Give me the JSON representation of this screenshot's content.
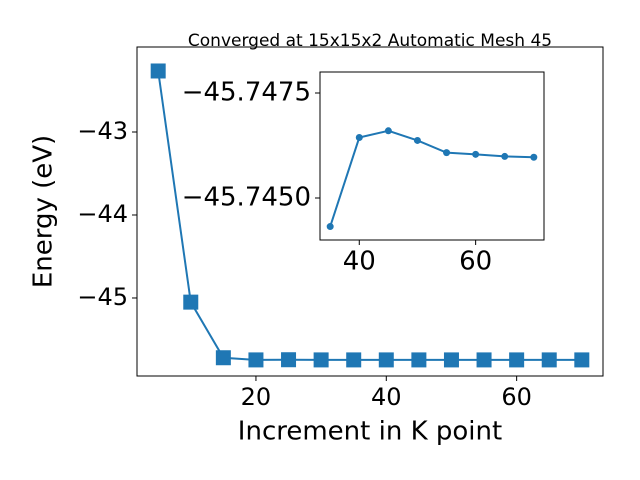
{
  "chart_data": [
    {
      "type": "line",
      "title": "Converged at 15x15x2 Automatic Mesh 45",
      "x_label": "Increment in K point",
      "y_label": "Energy (eV)",
      "x": [
        5,
        10,
        15,
        20,
        25,
        30,
        35,
        40,
        45,
        50,
        55,
        60,
        65,
        70
      ],
      "series": [
        {
          "color": "#1f77b4",
          "marker": "square",
          "values": [
            -42.265,
            -45.05,
            -45.72,
            -45.746,
            -45.744,
            -45.746,
            -45.746,
            -45.746,
            -45.746,
            -45.746,
            -45.746,
            -45.746,
            -45.746,
            -45.746
          ]
        }
      ],
      "xlim": [
        1.75,
        73.25
      ],
      "ylim": [
        -45.94,
        -41.976
      ],
      "xticks": [
        20,
        40,
        60
      ],
      "yticks": [
        {
          "value": -43,
          "label": "−43"
        },
        {
          "value": -44,
          "label": "−44"
        },
        {
          "value": -45,
          "label": "−45"
        }
      ]
    },
    {
      "type": "line",
      "x": [
        35,
        40,
        45,
        50,
        55,
        60,
        65,
        70
      ],
      "series": [
        {
          "color": "#1f77b4",
          "marker": "circle",
          "values": [
            -45.74432,
            -45.74644,
            -45.7466,
            -45.74637,
            -45.74608,
            -45.74604,
            -45.74599,
            -45.74597
          ]
        }
      ],
      "xlim": [
        33.25,
        71.75
      ],
      "ylim": [
        -45.744,
        -45.748
      ],
      "xticks": [
        40,
        60
      ],
      "yticks": [
        {
          "value": -45.7475,
          "label": "−45.7475"
        },
        {
          "value": -45.745,
          "label": "−45.7450"
        }
      ]
    }
  ]
}
